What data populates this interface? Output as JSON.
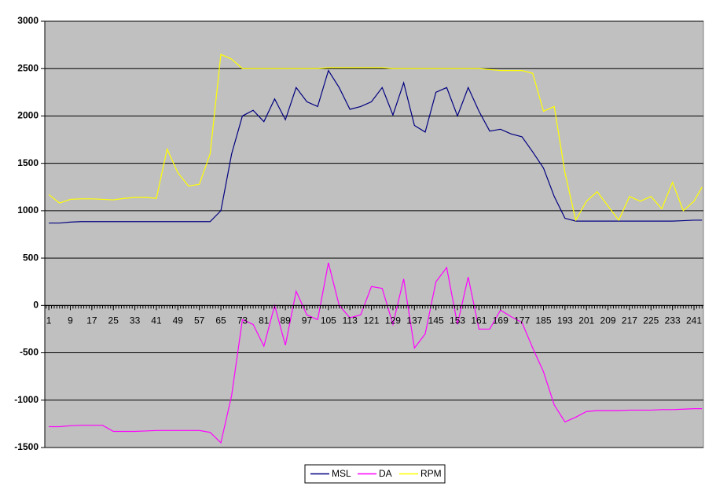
{
  "chart_data": {
    "type": "line",
    "x": [
      1,
      5,
      9,
      13,
      17,
      21,
      25,
      29,
      33,
      37,
      41,
      45,
      49,
      53,
      57,
      61,
      65,
      69,
      73,
      77,
      81,
      85,
      89,
      93,
      97,
      101,
      105,
      109,
      113,
      117,
      121,
      125,
      129,
      133,
      137,
      141,
      145,
      149,
      153,
      157,
      161,
      165,
      169,
      173,
      177,
      181,
      185,
      189,
      193,
      197,
      201,
      205,
      209,
      213,
      217,
      221,
      225,
      229,
      233,
      237,
      241,
      244
    ],
    "series": [
      {
        "name": "MSL",
        "color": "#000080",
        "values": [
          870,
          870,
          880,
          885,
          885,
          885,
          885,
          885,
          885,
          885,
          885,
          885,
          885,
          885,
          885,
          885,
          1000,
          1600,
          2000,
          2060,
          1940,
          2180,
          1960,
          2300,
          2150,
          2100,
          2480,
          2300,
          2070,
          2100,
          2150,
          2300,
          2010,
          2350,
          1900,
          1830,
          2250,
          2300,
          2000,
          2300,
          2050,
          1840,
          1860,
          1810,
          1780,
          1620,
          1450,
          1150,
          920,
          890,
          890,
          890,
          890,
          890,
          890,
          890,
          890,
          890,
          890,
          895,
          900,
          900
        ]
      },
      {
        "name": "DA",
        "color": "#ff00ff",
        "values": [
          -1280,
          -1280,
          -1270,
          -1265,
          -1265,
          -1265,
          -1330,
          -1330,
          -1330,
          -1325,
          -1320,
          -1320,
          -1320,
          -1320,
          -1320,
          -1340,
          -1450,
          -950,
          -150,
          -200,
          -430,
          0,
          -420,
          150,
          -100,
          -150,
          450,
          0,
          -130,
          -100,
          200,
          180,
          -200,
          280,
          -450,
          -300,
          250,
          400,
          -200,
          300,
          -250,
          -250,
          -50,
          -120,
          -180,
          -450,
          -700,
          -1050,
          -1230,
          -1180,
          -1120,
          -1110,
          -1110,
          -1110,
          -1105,
          -1105,
          -1105,
          -1100,
          -1100,
          -1095,
          -1090,
          -1090
        ]
      },
      {
        "name": "RPM",
        "color": "#ffff00",
        "values": [
          1170,
          1080,
          1120,
          1125,
          1125,
          1120,
          1115,
          1130,
          1140,
          1140,
          1130,
          1650,
          1400,
          1260,
          1280,
          1600,
          2650,
          2600,
          2500,
          2500,
          2500,
          2500,
          2500,
          2500,
          2500,
          2500,
          2510,
          2510,
          2510,
          2510,
          2510,
          2510,
          2500,
          2500,
          2500,
          2500,
          2500,
          2500,
          2500,
          2500,
          2500,
          2490,
          2480,
          2480,
          2480,
          2450,
          2050,
          2100,
          1400,
          900,
          1100,
          1200,
          1050,
          900,
          1150,
          1100,
          1150,
          1020,
          1300,
          1000,
          1100,
          1250
        ]
      }
    ],
    "xlim": [
      -0.5,
      244.5
    ],
    "xticks": [
      1,
      9,
      17,
      25,
      33,
      41,
      49,
      57,
      65,
      73,
      81,
      89,
      97,
      105,
      113,
      121,
      129,
      137,
      145,
      153,
      161,
      169,
      177,
      185,
      193,
      201,
      209,
      217,
      225,
      233,
      241
    ],
    "ylim": [
      -1500,
      3000
    ],
    "yticks": [
      -1500,
      -1000,
      -500,
      0,
      500,
      1000,
      1500,
      2000,
      2500,
      3000
    ],
    "grid": true,
    "legend": "bottom",
    "background": "#c0c0c0"
  }
}
